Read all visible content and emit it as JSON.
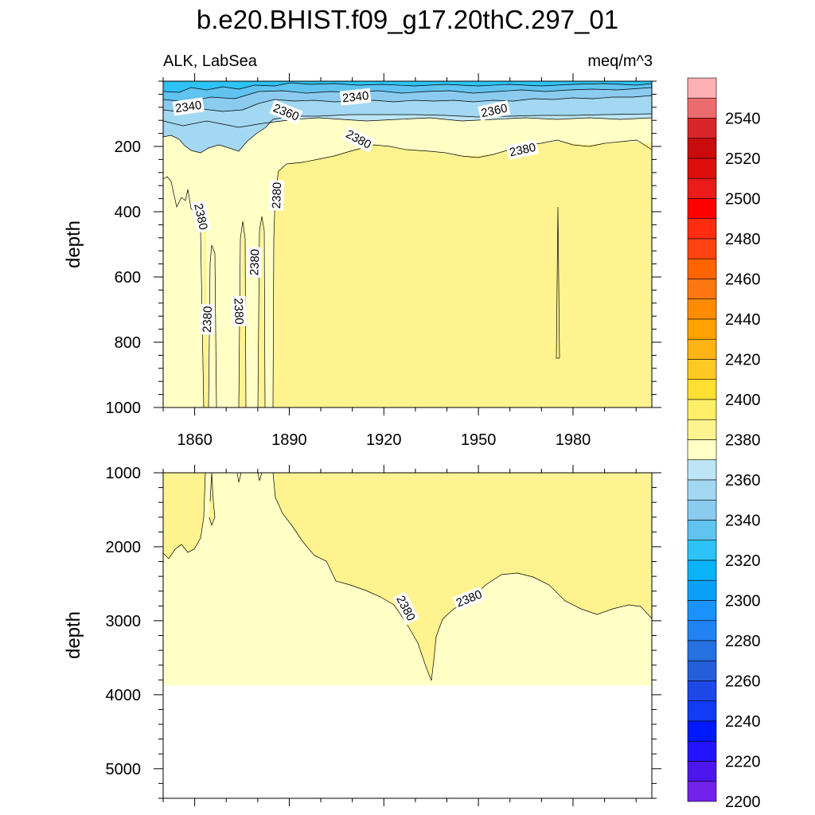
{
  "header": {
    "title": "b.e20.BHIST.f09_g17.20thC.297_01",
    "left_subtitle": "ALK, LabSea",
    "right_subtitle": "meq/m^3"
  },
  "chart_data": [
    {
      "type": "contour",
      "panel": "upper",
      "xlabel": "",
      "ylabel": "depth",
      "xlim": [
        1850,
        2005
      ],
      "ylim": [
        1000,
        0
      ],
      "x_ticks": [
        1860,
        1890,
        1920,
        1950,
        1980
      ],
      "y_ticks": [
        200,
        400,
        600,
        800,
        1000
      ],
      "fill_levels_present": [
        2330,
        2340,
        2350,
        2360,
        2370,
        2380,
        2390
      ],
      "contour_labels": [
        {
          "text": "2340",
          "x": 1858,
          "y": 78
        },
        {
          "text": "2340",
          "x": 1911,
          "y": 48
        },
        {
          "text": "2360",
          "x": 1889,
          "y": 95
        },
        {
          "text": "2360",
          "x": 1955,
          "y": 90
        },
        {
          "text": "2380",
          "x": 1912,
          "y": 178
        },
        {
          "text": "2380",
          "x": 1964,
          "y": 210
        },
        {
          "text": "2380",
          "x": 1862,
          "y": 415
        },
        {
          "text": "2380",
          "x": 1886,
          "y": 350
        },
        {
          "text": "2380",
          "x": 1879,
          "y": 555
        },
        {
          "text": "2380",
          "x": 1864,
          "y": 730
        },
        {
          "text": "2380",
          "x": 1874,
          "y": 705
        }
      ]
    },
    {
      "type": "contour",
      "panel": "lower",
      "xlabel": "",
      "ylabel": "depth",
      "xlim": [
        1850,
        2005
      ],
      "ylim": [
        5400,
        1000
      ],
      "y_ticks": [
        1000,
        2000,
        3000,
        4000,
        5000
      ],
      "data_bottom_depth": 3870,
      "fill_levels_present": [
        2370,
        2380,
        2390
      ],
      "contour_labels": [
        {
          "text": "2380",
          "x": 1927,
          "y": 2830
        },
        {
          "text": "2380",
          "x": 1947,
          "y": 2700
        }
      ]
    }
  ],
  "colorbar": {
    "labels": [
      "2540",
      "2520",
      "2500",
      "2480",
      "2460",
      "2440",
      "2420",
      "2400",
      "2380",
      "2360",
      "2340",
      "2320",
      "2300",
      "2280",
      "2260",
      "2240",
      "2220",
      "2200"
    ],
    "colors": [
      "#feb1b3",
      "#ec6c6e",
      "#d92628",
      "#c90b0b",
      "#dd0e0e",
      "#eb1b1b",
      "#ff0000",
      "#ff2c0f",
      "#ff4310",
      "#ff6400",
      "#ff7710",
      "#ff8c00",
      "#ffa200",
      "#ffb415",
      "#ffc924",
      "#ffdf31",
      "#ffee67",
      "#fff38f",
      "#ffffc6",
      "#bde5f5",
      "#a2d8f1",
      "#8bcbef",
      "#60c3f0",
      "#2dc3f6",
      "#0ab2f8",
      "#0ba0f8",
      "#1b92fc",
      "#2183f2",
      "#2471df",
      "#245ed9",
      "#1f48e8",
      "#113bf4",
      "#0019ff",
      "#2314ff",
      "#4d16ef",
      "#7322ea"
    ]
  }
}
